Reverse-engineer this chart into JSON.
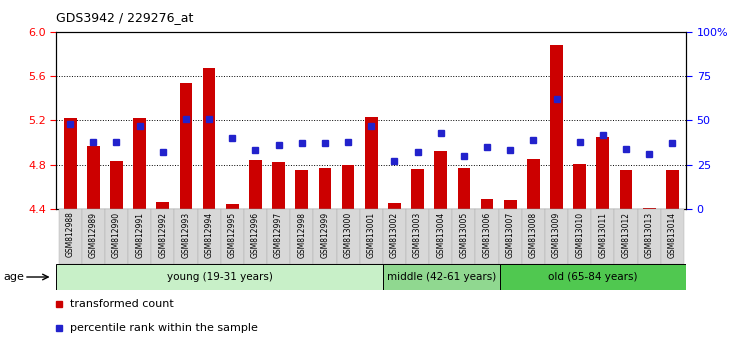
{
  "title": "GDS3942 / 229276_at",
  "samples": [
    "GSM812988",
    "GSM812989",
    "GSM812990",
    "GSM812991",
    "GSM812992",
    "GSM812993",
    "GSM812994",
    "GSM812995",
    "GSM812996",
    "GSM812997",
    "GSM812998",
    "GSM812999",
    "GSM813000",
    "GSM813001",
    "GSM813002",
    "GSM813003",
    "GSM813004",
    "GSM813005",
    "GSM813006",
    "GSM813007",
    "GSM813008",
    "GSM813009",
    "GSM813010",
    "GSM813011",
    "GSM813012",
    "GSM813013",
    "GSM813014"
  ],
  "red_values": [
    5.22,
    4.97,
    4.83,
    5.22,
    4.46,
    5.54,
    5.67,
    4.44,
    4.84,
    4.82,
    4.75,
    4.77,
    4.8,
    5.23,
    4.45,
    4.76,
    4.92,
    4.77,
    4.49,
    4.48,
    4.85,
    5.88,
    4.81,
    5.05,
    4.75,
    4.41,
    4.75
  ],
  "blue_values": [
    48,
    38,
    38,
    47,
    32,
    51,
    51,
    40,
    33,
    36,
    37,
    37,
    38,
    47,
    27,
    32,
    43,
    30,
    35,
    33,
    39,
    62,
    38,
    42,
    34,
    31,
    37
  ],
  "ylim_left": [
    4.4,
    6.0
  ],
  "ylim_right": [
    0,
    100
  ],
  "groups": [
    {
      "label": "young (19-31 years)",
      "start": 0,
      "end": 14,
      "color": "#c8f0c8"
    },
    {
      "label": "middle (42-61 years)",
      "start": 14,
      "end": 19,
      "color": "#90d890"
    },
    {
      "label": "old (65-84 years)",
      "start": 19,
      "end": 27,
      "color": "#50c850"
    }
  ],
  "bar_color": "#cc0000",
  "dot_color": "#2222cc",
  "yticks_left": [
    4.4,
    4.8,
    5.2,
    5.6,
    6.0
  ],
  "yticks_right": [
    0,
    25,
    50,
    75,
    100
  ],
  "ytick_labels_right": [
    "0",
    "25",
    "50",
    "75",
    "100%"
  ],
  "legend_red": "transformed count",
  "legend_blue": "percentile rank within the sample",
  "age_label": "age",
  "dotted_lines": [
    4.8,
    5.2,
    5.6
  ],
  "label_bg_color": "#d8d8d8",
  "n_young": 14,
  "n_middle": 5,
  "n_old": 8
}
